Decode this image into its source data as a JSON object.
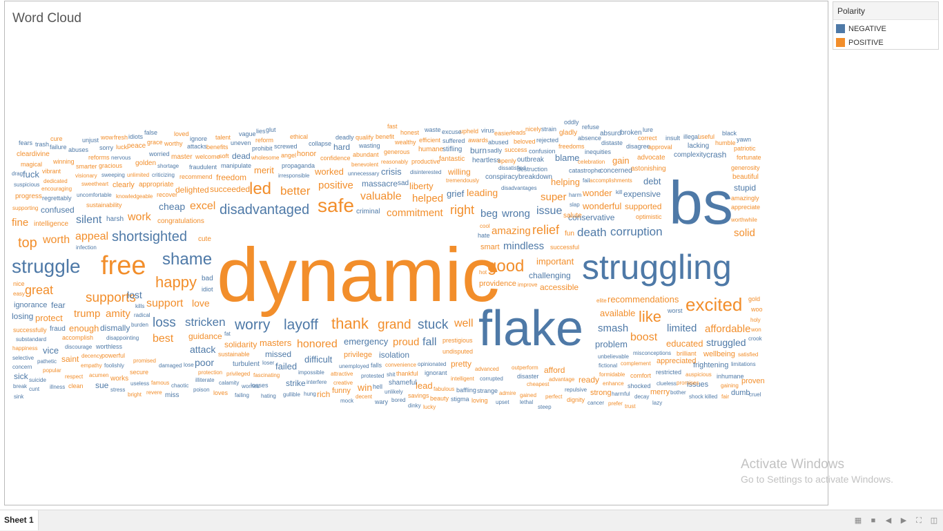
{
  "viz": {
    "title": "Word Cloud"
  },
  "legend": {
    "title": "Polarity",
    "items": [
      {
        "label": "NEGATIVE",
        "color": "#4e79a7"
      },
      {
        "label": "POSITIVE",
        "color": "#f28e2b"
      }
    ]
  },
  "colors": {
    "negative": "#4e79a7",
    "positive": "#f28e2b"
  },
  "watermark": {
    "line1": "Activate Windows",
    "line2": "Go to Settings to activate Windows."
  },
  "tabs": [
    {
      "label": "Sheet 1"
    }
  ],
  "toolbar_icons": [
    "grid-view-icon",
    "sheet-view-icon",
    "prev-sheet-icon",
    "next-sheet-icon",
    "fit-icon",
    "presentation-icon"
  ],
  "words": [
    [
      "dynamic",
      "P"
    ],
    [
      "flake",
      "N"
    ],
    [
      "bs",
      "N"
    ],
    [
      "struggling",
      "N"
    ],
    [
      "free",
      "P"
    ],
    [
      "struggle",
      "N"
    ],
    [
      "shame",
      "N"
    ],
    [
      "safe",
      "P"
    ],
    [
      "disadvantaged",
      "N"
    ],
    [
      "led",
      "P"
    ],
    [
      "excited",
      "P"
    ],
    [
      "happy",
      "P"
    ],
    [
      "good",
      "P"
    ],
    [
      "worry",
      "N"
    ],
    [
      "layoff",
      "N"
    ],
    [
      "thank",
      "P"
    ],
    [
      "grand",
      "P"
    ],
    [
      "stuck",
      "N"
    ],
    [
      "well",
      "P"
    ],
    [
      "like",
      "P"
    ],
    [
      "loss",
      "N"
    ],
    [
      "stricken",
      "N"
    ],
    [
      "shortsighted",
      "N"
    ],
    [
      "better",
      "P"
    ],
    [
      "positive",
      "P"
    ],
    [
      "corruption",
      "N"
    ],
    [
      "death",
      "N"
    ],
    [
      "relief",
      "P"
    ],
    [
      "amazing",
      "P"
    ],
    [
      "right",
      "P"
    ],
    [
      "commitment",
      "P"
    ],
    [
      "valuable",
      "P"
    ],
    [
      "helped",
      "P"
    ],
    [
      "great",
      "P"
    ],
    [
      "supports",
      "P"
    ],
    [
      "top",
      "P"
    ],
    [
      "worth",
      "P"
    ],
    [
      "appeal",
      "P"
    ],
    [
      "fine",
      "P"
    ],
    [
      "silent",
      "N"
    ],
    [
      "work",
      "P"
    ],
    [
      "cheap",
      "N"
    ],
    [
      "excel",
      "P"
    ],
    [
      "wrong",
      "N"
    ],
    [
      "beg",
      "N"
    ],
    [
      "issue",
      "N"
    ],
    [
      "super",
      "P"
    ],
    [
      "mindless",
      "N"
    ],
    [
      "boost",
      "P"
    ],
    [
      "affordable",
      "P"
    ],
    [
      "limited",
      "N"
    ],
    [
      "smash",
      "N"
    ],
    [
      "honored",
      "P"
    ],
    [
      "best",
      "P"
    ],
    [
      "fall",
      "N"
    ],
    [
      "proud",
      "P"
    ],
    [
      "emergency",
      "N"
    ],
    [
      "difficult",
      "N"
    ],
    [
      "support",
      "P"
    ],
    [
      "love",
      "P"
    ],
    [
      "lost",
      "N"
    ],
    [
      "trump",
      "P"
    ],
    [
      "amity",
      "P"
    ],
    [
      "attack",
      "N"
    ],
    [
      "poor",
      "N"
    ],
    [
      "masters",
      "P"
    ],
    [
      "failed",
      "N"
    ],
    [
      "missed",
      "N"
    ],
    [
      "isolation",
      "N"
    ],
    [
      "win",
      "P"
    ],
    [
      "lead",
      "P"
    ],
    [
      "struggled",
      "N"
    ],
    [
      "educated",
      "P"
    ],
    [
      "problem",
      "N"
    ],
    [
      "available",
      "P"
    ],
    [
      "recommendations",
      "P"
    ],
    [
      "important",
      "P"
    ],
    [
      "challenging",
      "N"
    ],
    [
      "accessible",
      "P"
    ],
    [
      "providence",
      "P"
    ],
    [
      "debt",
      "N"
    ],
    [
      "expensive",
      "N"
    ],
    [
      "wonder",
      "P"
    ],
    [
      "helping",
      "P"
    ],
    [
      "blame",
      "N"
    ],
    [
      "gain",
      "P"
    ],
    [
      "crisis",
      "N"
    ],
    [
      "worked",
      "P"
    ],
    [
      "willing",
      "P"
    ],
    [
      "merit",
      "P"
    ],
    [
      "freedom",
      "P"
    ],
    [
      "dead",
      "N"
    ],
    [
      "hard",
      "N"
    ],
    [
      "burn",
      "N"
    ],
    [
      "crash",
      "N"
    ],
    [
      "stupid",
      "N"
    ],
    [
      "beautiful",
      "P"
    ],
    [
      "solid",
      "P"
    ],
    [
      "wonderful",
      "P"
    ],
    [
      "supported",
      "P"
    ],
    [
      "conservative",
      "N"
    ],
    [
      "leading",
      "P"
    ],
    [
      "grief",
      "N"
    ],
    [
      "liberty",
      "P"
    ],
    [
      "massacre",
      "N"
    ],
    [
      "delighted",
      "P"
    ],
    [
      "succeeded",
      "P"
    ],
    [
      "confused",
      "N"
    ],
    [
      "fuck",
      "N"
    ],
    [
      "vice",
      "N"
    ],
    [
      "saint",
      "P"
    ],
    [
      "protect",
      "P"
    ],
    [
      "fear",
      "N"
    ],
    [
      "ignorance",
      "N"
    ],
    [
      "losing",
      "N"
    ],
    [
      "enough",
      "P"
    ],
    [
      "dismally",
      "N"
    ],
    [
      "guidance",
      "P"
    ],
    [
      "solidarity",
      "P"
    ],
    [
      "sick",
      "N"
    ],
    [
      "sue",
      "N"
    ],
    [
      "works",
      "P"
    ],
    [
      "funny",
      "P"
    ],
    [
      "rich",
      "P"
    ],
    [
      "strike",
      "N"
    ],
    [
      "dumb",
      "N"
    ],
    [
      "proven",
      "P"
    ],
    [
      "wellbeing",
      "P"
    ],
    [
      "frightening",
      "N"
    ],
    [
      "appreciated",
      "P"
    ],
    [
      "afford",
      "P"
    ],
    [
      "ready",
      "P"
    ],
    [
      "strong",
      "P"
    ],
    [
      "merry",
      "P"
    ],
    [
      "issues",
      "N"
    ],
    [
      "brilliant",
      "P"
    ],
    [
      "pretty",
      "P"
    ],
    [
      "shameful",
      "N"
    ],
    [
      "fantastic",
      "P"
    ],
    [
      "tremendously",
      "P"
    ],
    [
      "conspiracy",
      "N"
    ],
    [
      "breakdown",
      "N"
    ],
    [
      "outbreak",
      "N"
    ],
    [
      "heartless",
      "N"
    ],
    [
      "destruction",
      "N"
    ],
    [
      "catastrophe",
      "N"
    ],
    [
      "concerned",
      "N"
    ],
    [
      "astonishing",
      "P"
    ],
    [
      "advocate",
      "P"
    ],
    [
      "complexity",
      "N"
    ],
    [
      "lacking",
      "N"
    ],
    [
      "illegal",
      "N"
    ],
    [
      "insult",
      "N"
    ],
    [
      "broken",
      "N"
    ],
    [
      "absurd",
      "N"
    ],
    [
      "refuse",
      "N"
    ],
    [
      "oddly",
      "N"
    ],
    [
      "gladly",
      "P"
    ],
    [
      "strain",
      "N"
    ],
    [
      "nicely",
      "P"
    ],
    [
      "leads",
      "P"
    ],
    [
      "easier",
      "P"
    ],
    [
      "virus",
      "N"
    ],
    [
      "upheld",
      "P"
    ],
    [
      "excuse",
      "N"
    ],
    [
      "waste",
      "N"
    ],
    [
      "honest",
      "P"
    ],
    [
      "fast",
      "P"
    ],
    [
      "benefit",
      "P"
    ],
    [
      "qualify",
      "P"
    ],
    [
      "deadly",
      "N"
    ],
    [
      "losses",
      "N"
    ],
    [
      "ethical",
      "P"
    ],
    [
      "glut",
      "N"
    ],
    [
      "lies",
      "N"
    ],
    [
      "vague",
      "N"
    ],
    [
      "talent",
      "P"
    ],
    [
      "ignore",
      "N"
    ],
    [
      "loved",
      "P"
    ],
    [
      "false",
      "N"
    ],
    [
      "idiots",
      "N"
    ],
    [
      "fresh",
      "P"
    ],
    [
      "wow",
      "P"
    ],
    [
      "unjust",
      "N"
    ],
    [
      "cure",
      "P"
    ],
    [
      "trash",
      "N"
    ],
    [
      "fears",
      "N"
    ],
    [
      "failure",
      "N"
    ],
    [
      "abuses",
      "N"
    ],
    [
      "sorry",
      "N"
    ],
    [
      "luck",
      "P"
    ],
    [
      "peace",
      "P"
    ],
    [
      "grace",
      "P"
    ],
    [
      "worthy",
      "P"
    ],
    [
      "attacks",
      "N"
    ],
    [
      "benefits",
      "P"
    ],
    [
      "uneven",
      "N"
    ],
    [
      "reform",
      "P"
    ],
    [
      "prohibit",
      "N"
    ],
    [
      "screwed",
      "N"
    ],
    [
      "collapse",
      "N"
    ],
    [
      "wasting",
      "N"
    ],
    [
      "generous",
      "P"
    ],
    [
      "efficient",
      "P"
    ],
    [
      "humane",
      "P"
    ],
    [
      "stifling",
      "N"
    ],
    [
      "success",
      "P"
    ],
    [
      "sadly",
      "N"
    ],
    [
      "confusion",
      "N"
    ],
    [
      "freedoms",
      "P"
    ],
    [
      "inequities",
      "N"
    ],
    [
      "distaste",
      "N"
    ],
    [
      "disagree",
      "N"
    ],
    [
      "approval",
      "P"
    ],
    [
      "correct",
      "P"
    ],
    [
      "useful",
      "P"
    ],
    [
      "humble",
      "P"
    ],
    [
      "patriotic",
      "P"
    ],
    [
      "fortunate",
      "P"
    ],
    [
      "generosity",
      "P"
    ],
    [
      "amazingly",
      "P"
    ],
    [
      "appreciate",
      "P"
    ],
    [
      "worthwhile",
      "P"
    ],
    [
      "yawn",
      "N"
    ],
    [
      "black",
      "N"
    ],
    [
      "cleardivine",
      "P"
    ],
    [
      "magical",
      "P"
    ],
    [
      "vibrant",
      "P"
    ],
    [
      "dedicated",
      "P"
    ],
    [
      "encouraging",
      "P"
    ],
    [
      "progress",
      "P"
    ],
    [
      "regrettably",
      "N"
    ],
    [
      "supporting",
      "P"
    ],
    [
      "intelligence",
      "P"
    ],
    [
      "harsh",
      "N"
    ],
    [
      "sustainability",
      "P"
    ],
    [
      "uncomfortable",
      "N"
    ],
    [
      "knowledgeable",
      "P"
    ],
    [
      "recover",
      "P"
    ],
    [
      "congratulations",
      "P"
    ],
    [
      "cute",
      "P"
    ],
    [
      "bad",
      "N"
    ],
    [
      "idiot",
      "N"
    ],
    [
      "infection",
      "N"
    ],
    [
      "nice",
      "P"
    ],
    [
      "easy",
      "P"
    ],
    [
      "kills",
      "N"
    ],
    [
      "radical",
      "N"
    ],
    [
      "burden",
      "N"
    ],
    [
      "disappointing",
      "N"
    ],
    [
      "fraud",
      "N"
    ],
    [
      "accomplish",
      "P"
    ],
    [
      "successfully",
      "P"
    ],
    [
      "substandard",
      "N"
    ],
    [
      "happiness",
      "P"
    ],
    [
      "worthless",
      "N"
    ],
    [
      "discourage",
      "N"
    ],
    [
      "decency",
      "P"
    ],
    [
      "powerful",
      "P"
    ],
    [
      "empathy",
      "P"
    ],
    [
      "foolishly",
      "N"
    ],
    [
      "selective",
      "N"
    ],
    [
      "pathetic",
      "N"
    ],
    [
      "concern",
      "N"
    ],
    [
      "popular",
      "P"
    ],
    [
      "respect",
      "P"
    ],
    [
      "acumen",
      "P"
    ],
    [
      "promised",
      "P"
    ],
    [
      "damaged",
      "N"
    ],
    [
      "lose",
      "N"
    ],
    [
      "secure",
      "P"
    ],
    [
      "illiterate",
      "N"
    ],
    [
      "protection",
      "P"
    ],
    [
      "calamity",
      "N"
    ],
    [
      "worries",
      "N"
    ],
    [
      "suicide",
      "N"
    ],
    [
      "illness",
      "N"
    ],
    [
      "clean",
      "P"
    ],
    [
      "stress",
      "N"
    ],
    [
      "bright",
      "P"
    ],
    [
      "revere",
      "P"
    ],
    [
      "famous",
      "P"
    ],
    [
      "chaotic",
      "N"
    ],
    [
      "useless",
      "N"
    ],
    [
      "miss",
      "N"
    ],
    [
      "poison",
      "N"
    ],
    [
      "loves",
      "P"
    ],
    [
      "failing",
      "N"
    ],
    [
      "hating",
      "N"
    ],
    [
      "gullible",
      "N"
    ],
    [
      "hung",
      "N"
    ],
    [
      "mock",
      "N"
    ],
    [
      "decent",
      "P"
    ],
    [
      "wary",
      "N"
    ],
    [
      "bored",
      "N"
    ],
    [
      "dinky",
      "N"
    ],
    [
      "lucky",
      "P"
    ],
    [
      "savings",
      "P"
    ],
    [
      "beauty",
      "P"
    ],
    [
      "stigma",
      "N"
    ],
    [
      "loving",
      "P"
    ],
    [
      "upset",
      "N"
    ],
    [
      "lethal",
      "N"
    ],
    [
      "steep",
      "N"
    ],
    [
      "cancer",
      "N"
    ],
    [
      "prefer",
      "P"
    ],
    [
      "trust",
      "P"
    ],
    [
      "lazy",
      "N"
    ],
    [
      "shock",
      "N"
    ],
    [
      "killed",
      "N"
    ],
    [
      "fair",
      "P"
    ],
    [
      "cruel",
      "N"
    ],
    [
      "sink",
      "N"
    ],
    [
      "cunt",
      "N"
    ],
    [
      "break",
      "N"
    ],
    [
      "unbelievable",
      "N"
    ],
    [
      "misconceptions",
      "N"
    ],
    [
      "comfort",
      "P"
    ],
    [
      "formidable",
      "P"
    ],
    [
      "enhance",
      "P"
    ],
    [
      "shocked",
      "N"
    ],
    [
      "decay",
      "N"
    ],
    [
      "clueless",
      "N"
    ],
    [
      "promises",
      "P"
    ],
    [
      "bother",
      "N"
    ],
    [
      "auspicious",
      "P"
    ],
    [
      "inhumane",
      "N"
    ],
    [
      "gaining",
      "P"
    ],
    [
      "restricted",
      "N"
    ],
    [
      "fictional",
      "N"
    ],
    [
      "complement",
      "P"
    ],
    [
      "advantage",
      "P"
    ],
    [
      "repulsive",
      "N"
    ],
    [
      "dignity",
      "P"
    ],
    [
      "harmful",
      "N"
    ],
    [
      "admire",
      "P"
    ],
    [
      "gained",
      "P"
    ],
    [
      "perfect",
      "P"
    ],
    [
      "beloved",
      "P"
    ],
    [
      "cheapest",
      "P"
    ],
    [
      "disaster",
      "N"
    ],
    [
      "outperform",
      "P"
    ],
    [
      "advanced",
      "P"
    ],
    [
      "corrupted",
      "N"
    ],
    [
      "intelligent",
      "P"
    ],
    [
      "baffling",
      "N"
    ],
    [
      "strange",
      "N"
    ],
    [
      "fabulous",
      "P"
    ],
    [
      "ignorant",
      "N"
    ],
    [
      "thankful",
      "P"
    ],
    [
      "shit",
      "N"
    ],
    [
      "protested",
      "N"
    ],
    [
      "unlikely",
      "N"
    ],
    [
      "convenience",
      "P"
    ],
    [
      "opinionated",
      "N"
    ],
    [
      "undisputed",
      "P"
    ],
    [
      "prestigious",
      "P"
    ],
    [
      "attractive",
      "P"
    ],
    [
      "unemployed",
      "N"
    ],
    [
      "falls",
      "N"
    ],
    [
      "privilege",
      "P"
    ],
    [
      "creative",
      "P"
    ],
    [
      "hell",
      "N"
    ],
    [
      "impossible",
      "N"
    ],
    [
      "interfere",
      "N"
    ],
    [
      "turbulent",
      "N"
    ],
    [
      "loser",
      "N"
    ],
    [
      "privileged",
      "P"
    ],
    [
      "fascinating",
      "P"
    ],
    [
      "sustainable",
      "P"
    ],
    [
      "fat",
      "N"
    ],
    [
      "holy",
      "P"
    ],
    [
      "woo",
      "P"
    ],
    [
      "gold",
      "P"
    ],
    [
      "elite",
      "P"
    ],
    [
      "worst",
      "N"
    ],
    [
      "crook",
      "N"
    ],
    [
      "won",
      "P"
    ],
    [
      "satisfied",
      "P"
    ],
    [
      "limitations",
      "N"
    ],
    [
      "salute",
      "P"
    ],
    [
      "fun",
      "P"
    ],
    [
      "optimistic",
      "P"
    ],
    [
      "kill",
      "N"
    ],
    [
      "accomplishments",
      "P"
    ],
    [
      "fail",
      "N"
    ],
    [
      "harm",
      "N"
    ],
    [
      "slap",
      "N"
    ],
    [
      "celebration",
      "P"
    ],
    [
      "absence",
      "N"
    ],
    [
      "unnecessary",
      "N"
    ],
    [
      "irresponsible",
      "N"
    ],
    [
      "propaganda",
      "N"
    ],
    [
      "criminal",
      "N"
    ],
    [
      "disinterested",
      "N"
    ],
    [
      "sad",
      "N"
    ],
    [
      "dissatisfied",
      "N"
    ],
    [
      "disadvantages",
      "N"
    ],
    [
      "hate",
      "N"
    ],
    [
      "cool",
      "P"
    ],
    [
      "hot",
      "P"
    ],
    [
      "smart",
      "P"
    ],
    [
      "successful",
      "P"
    ],
    [
      "improve",
      "P"
    ],
    [
      "manipulate",
      "N"
    ],
    [
      "fraudulent",
      "N"
    ],
    [
      "recommend",
      "P"
    ],
    [
      "shortage",
      "N"
    ],
    [
      "worried",
      "N"
    ],
    [
      "unlimited",
      "P"
    ],
    [
      "criticizing",
      "N"
    ],
    [
      "sweeping",
      "N"
    ],
    [
      "sweetheart",
      "P"
    ],
    [
      "appropriate",
      "P"
    ],
    [
      "clearly",
      "P"
    ],
    [
      "visionary",
      "P"
    ],
    [
      "smarter",
      "P"
    ],
    [
      "gracious",
      "P"
    ],
    [
      "reforms",
      "P"
    ],
    [
      "nervous",
      "N"
    ],
    [
      "winning",
      "P"
    ],
    [
      "golden",
      "P"
    ],
    [
      "master",
      "P"
    ],
    [
      "welcome",
      "P"
    ],
    [
      "soft",
      "P"
    ],
    [
      "wholesome",
      "P"
    ],
    [
      "angel",
      "P"
    ],
    [
      "honor",
      "P"
    ],
    [
      "confidence",
      "P"
    ],
    [
      "abundant",
      "P"
    ],
    [
      "benevolent",
      "P"
    ],
    [
      "reasonably",
      "P"
    ],
    [
      "productive",
      "P"
    ],
    [
      "awards",
      "P"
    ],
    [
      "wealthy",
      "P"
    ],
    [
      "abused",
      "N"
    ],
    [
      "rejected",
      "N"
    ],
    [
      "suffered",
      "N"
    ],
    [
      "openly",
      "P"
    ],
    [
      "lure",
      "N"
    ],
    [
      "suspicious",
      "N"
    ],
    [
      "drag",
      "N"
    ]
  ]
}
